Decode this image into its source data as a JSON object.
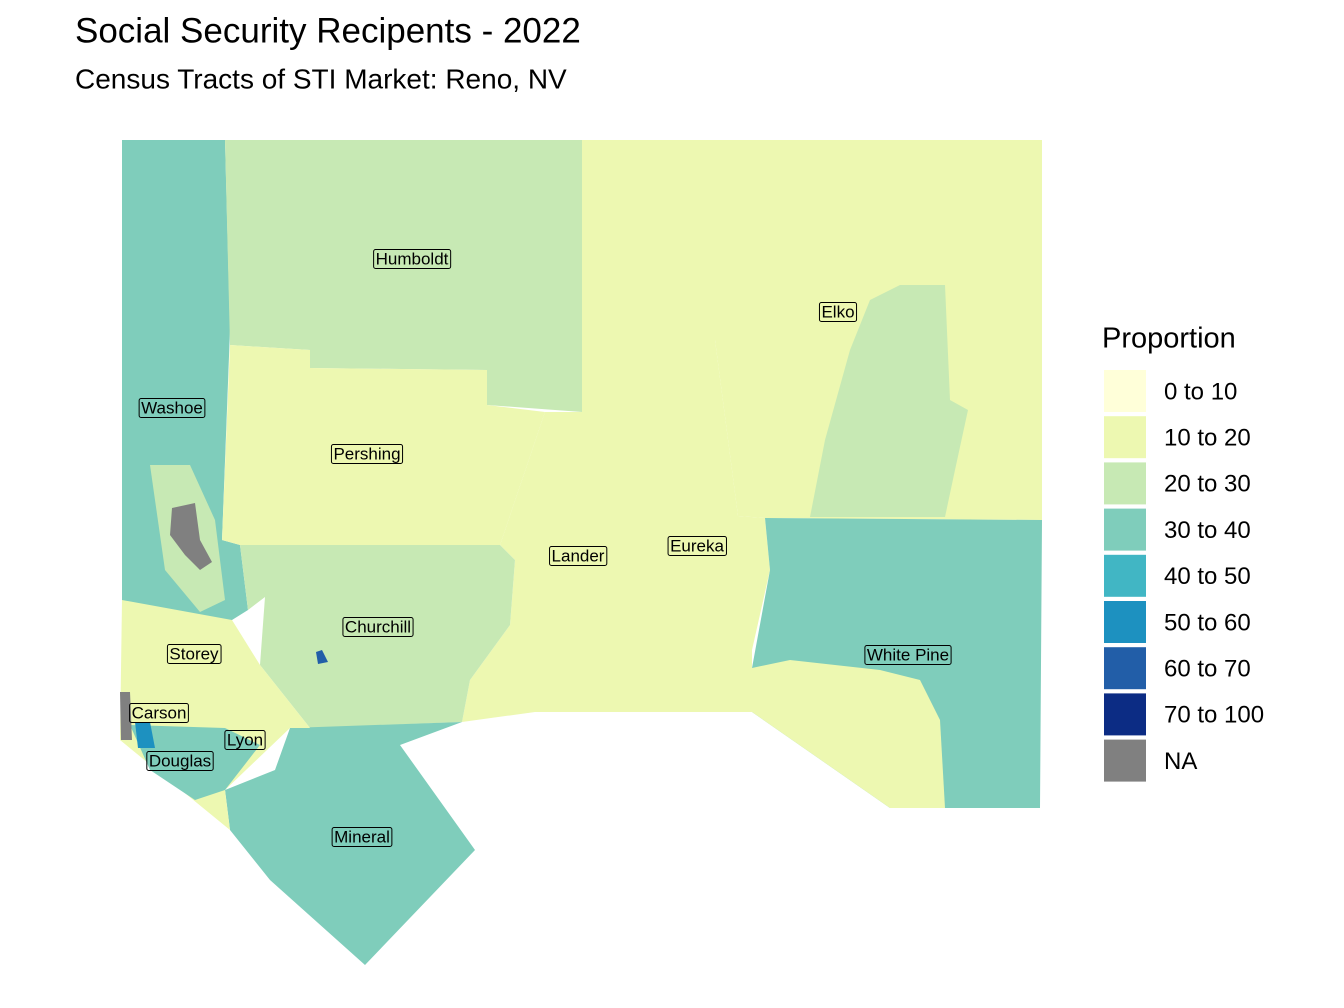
{
  "title": "Social Security Recipents - 2022",
  "subtitle": "Census Tracts of STI Market: Reno, NV",
  "legend": {
    "title": "Proportion",
    "items": [
      {
        "label": "0 to 10",
        "color": "#ffffd9"
      },
      {
        "label": "10 to 20",
        "color": "#edf8b1"
      },
      {
        "label": "20 to 30",
        "color": "#c7e9b4"
      },
      {
        "label": "30 to 40",
        "color": "#7fcdbb"
      },
      {
        "label": "40 to 50",
        "color": "#41b6c4"
      },
      {
        "label": "50 to 60",
        "color": "#1d91c0"
      },
      {
        "label": "60 to 70",
        "color": "#225ea8"
      },
      {
        "label": "70 to 100",
        "color": "#0c2c84"
      },
      {
        "label": "NA",
        "color": "#808080"
      }
    ]
  },
  "counties": [
    {
      "label": "Humboldt"
    },
    {
      "label": "Elko"
    },
    {
      "label": "Washoe"
    },
    {
      "label": "Pershing"
    },
    {
      "label": "Lander"
    },
    {
      "label": "Eureka"
    },
    {
      "label": "Churchill"
    },
    {
      "label": "Storey"
    },
    {
      "label": "White Pine"
    },
    {
      "label": "Carson"
    },
    {
      "label": "Lyon"
    },
    {
      "label": "Douglas"
    },
    {
      "label": "Mineral"
    }
  ]
}
